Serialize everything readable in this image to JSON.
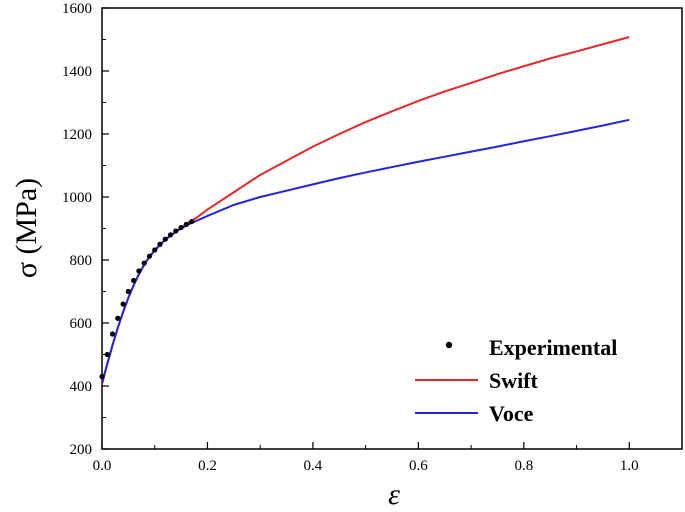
{
  "chart_data": {
    "type": "line",
    "xlabel": "ε",
    "ylabel": "σ (MPa)",
    "xlim": [
      0.0,
      1.1
    ],
    "ylim": [
      200,
      1600
    ],
    "x_ticks": [
      "0.0",
      "0.2",
      "0.4",
      "0.6",
      "0.8",
      "1.0"
    ],
    "y_ticks": [
      "200",
      "400",
      "600",
      "800",
      "1000",
      "1200",
      "1400",
      "1600"
    ],
    "grid": false,
    "legend_position": "bottom-right",
    "legend": {
      "experimental": "Experimental",
      "swift": "Swift",
      "voce": "Voce"
    },
    "series": [
      {
        "name": "Experimental",
        "kind": "scatter",
        "color": "#000000",
        "x": [
          0.0,
          0.01,
          0.02,
          0.03,
          0.04,
          0.05,
          0.06,
          0.07,
          0.08,
          0.09,
          0.1,
          0.11,
          0.12,
          0.13,
          0.14,
          0.15,
          0.16,
          0.17
        ],
        "y": [
          430,
          500,
          565,
          615,
          660,
          700,
          735,
          765,
          790,
          812,
          832,
          850,
          866,
          880,
          892,
          903,
          913,
          922
        ]
      },
      {
        "name": "Swift",
        "kind": "line",
        "color": "#e8262a",
        "x": [
          0.0,
          0.01,
          0.02,
          0.03,
          0.04,
          0.05,
          0.06,
          0.07,
          0.08,
          0.09,
          0.1,
          0.12,
          0.14,
          0.16,
          0.18,
          0.2,
          0.25,
          0.3,
          0.35,
          0.4,
          0.45,
          0.5,
          0.55,
          0.6,
          0.65,
          0.7,
          0.75,
          0.8,
          0.85,
          0.9,
          0.95,
          1.0
        ],
        "y": [
          405,
          470,
          530,
          585,
          635,
          680,
          720,
          755,
          785,
          810,
          832,
          865,
          890,
          915,
          935,
          960,
          1015,
          1070,
          1115,
          1160,
          1200,
          1238,
          1272,
          1305,
          1335,
          1362,
          1390,
          1415,
          1440,
          1462,
          1485,
          1508
        ]
      },
      {
        "name": "Voce",
        "kind": "line",
        "color": "#2323e0",
        "x": [
          0.0,
          0.01,
          0.02,
          0.03,
          0.04,
          0.05,
          0.06,
          0.07,
          0.08,
          0.09,
          0.1,
          0.12,
          0.14,
          0.16,
          0.18,
          0.2,
          0.25,
          0.3,
          0.35,
          0.4,
          0.45,
          0.5,
          0.55,
          0.6,
          0.65,
          0.7,
          0.75,
          0.8,
          0.85,
          0.9,
          0.95,
          1.0
        ],
        "y": [
          410,
          470,
          530,
          585,
          635,
          680,
          720,
          755,
          785,
          810,
          830,
          865,
          890,
          910,
          925,
          940,
          975,
          1000,
          1020,
          1040,
          1060,
          1078,
          1095,
          1112,
          1128,
          1144,
          1160,
          1177,
          1193,
          1210,
          1227,
          1245
        ]
      }
    ]
  }
}
